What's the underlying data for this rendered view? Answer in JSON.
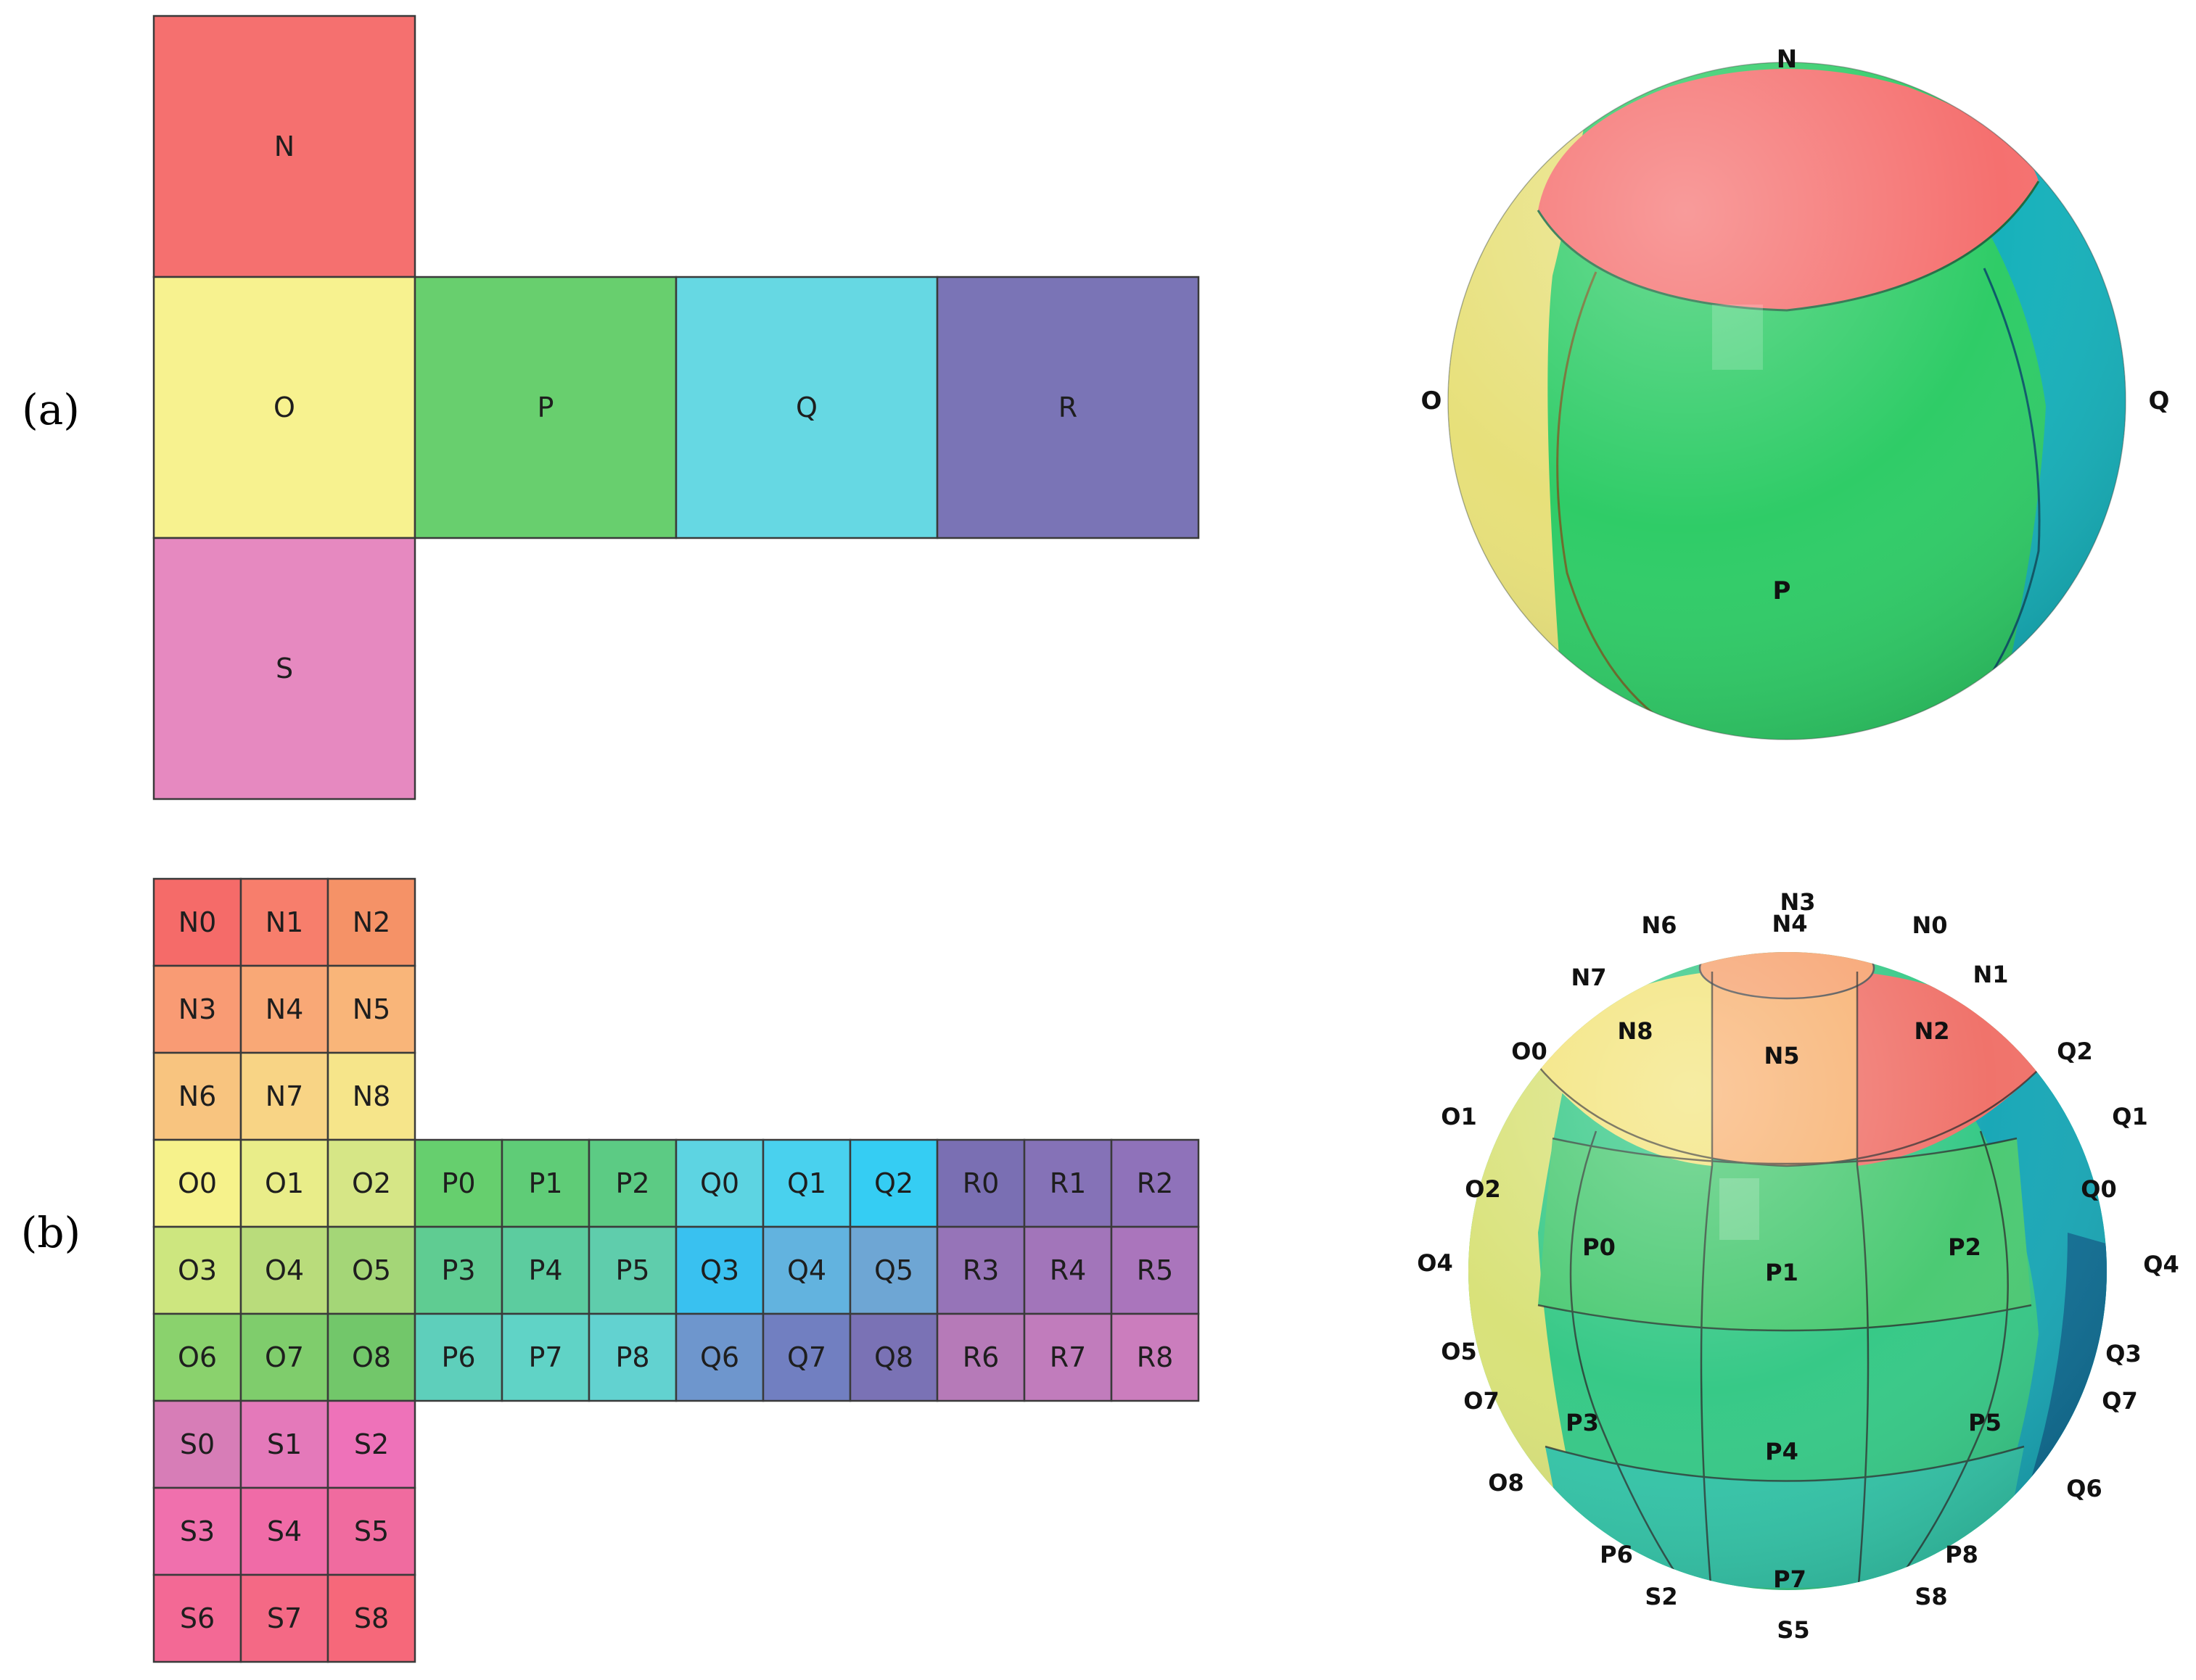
{
  "panel_labels": {
    "a": "(a)",
    "b": "(b)"
  },
  "net_a": {
    "faces": [
      {
        "id": "N",
        "label": "N",
        "color": "#f5706f"
      },
      {
        "id": "O",
        "label": "O",
        "color": "#f7f28f"
      },
      {
        "id": "P",
        "label": "P",
        "color": "#68cf6e"
      },
      {
        "id": "Q",
        "label": "Q",
        "color": "#66d8e3"
      },
      {
        "id": "R",
        "label": "R",
        "color": "#7a74b6"
      },
      {
        "id": "S",
        "label": "S",
        "color": "#e689c0"
      }
    ]
  },
  "net_b": {
    "cells": {
      "N": {
        "labels": [
          "N0",
          "N1",
          "N2",
          "N3",
          "N4",
          "N5",
          "N6",
          "N7",
          "N8"
        ],
        "colors": [
          "#f56b69",
          "#f77e6c",
          "#f59267",
          "#f99b74",
          "#f9a876",
          "#f9b579",
          "#f8c47f",
          "#f8d485",
          "#f6e58a"
        ]
      },
      "O": {
        "labels": [
          "O0",
          "O1",
          "O2",
          "O3",
          "O4",
          "O5",
          "O6",
          "O7",
          "O8"
        ],
        "colors": [
          "#f6f28b",
          "#e9ed89",
          "#d6e686",
          "#cde67f",
          "#b9dc7b",
          "#a4d677",
          "#8ad26d",
          "#7fcd6c",
          "#72c76a"
        ]
      },
      "P": {
        "labels": [
          "P0",
          "P1",
          "P2",
          "P3",
          "P4",
          "P5",
          "P6",
          "P7",
          "P8"
        ],
        "colors": [
          "#66cf6e",
          "#5fcc77",
          "#5ccb84",
          "#5fcc92",
          "#5ccc9f",
          "#5fcdac",
          "#5ecfbb",
          "#60d3c6",
          "#62d2d0"
        ]
      },
      "Q": {
        "labels": [
          "Q0",
          "Q1",
          "Q2",
          "Q3",
          "Q4",
          "Q5",
          "Q6",
          "Q7",
          "Q8"
        ],
        "colors": [
          "#5dd4e2",
          "#49d1ee",
          "#35cdf3",
          "#39c1f0",
          "#62b3df",
          "#6ea6d4",
          "#6e96cd",
          "#717fc1",
          "#7a72b5"
        ]
      },
      "R": {
        "labels": [
          "R0",
          "R1",
          "R2",
          "R3",
          "R4",
          "R5",
          "R6",
          "R7",
          "R8"
        ],
        "colors": [
          "#7a6fb3",
          "#8572b7",
          "#8f72ba",
          "#9674b8",
          "#a275ba",
          "#aa75bc",
          "#b67ab8",
          "#c17cbc",
          "#cb7dbd"
        ]
      },
      "S": {
        "labels": [
          "S0",
          "S1",
          "S2",
          "S3",
          "S4",
          "S5",
          "S6",
          "S7",
          "S8"
        ],
        "colors": [
          "#d77db7",
          "#e479ba",
          "#ee72b9",
          "#f070ad",
          "#f06ba7",
          "#f06b9f",
          "#f36995",
          "#f46985",
          "#f6687a"
        ]
      }
    }
  },
  "sphere_a": {
    "labels": {
      "N": "N",
      "O": "O",
      "Q": "Q",
      "P": "P"
    },
    "colors": {
      "N": "#f5706f",
      "O": "#e7e07a",
      "P": "#2fcc67",
      "Q": "#17b1bb",
      "S": "#d44ba4"
    }
  },
  "sphere_b": {
    "labels": [
      "N3",
      "N6",
      "N4",
      "N0",
      "N7",
      "N1",
      "O0",
      "N8",
      "N2",
      "Q2",
      "N5",
      "O1",
      "Q1",
      "O2",
      "Q0",
      "P0",
      "P2",
      "O4",
      "P1",
      "Q4",
      "O5",
      "Q3",
      "O7",
      "Q7",
      "P3",
      "P5",
      "P4",
      "O8",
      "Q6",
      "P6",
      "P8",
      "P7",
      "S2",
      "S8",
      "S5"
    ],
    "colors": {
      "cap_left": "#f3e47c",
      "cap_mid": "#f8b374",
      "cap_right": "#f0736b",
      "top_disc": "#f7a573",
      "o_band": "#d9e27a",
      "p_top": "#4cca74",
      "p_mid": "#37c987",
      "p_bot": "#34c6a9",
      "q_band": "#1aa8b7",
      "q_dark": "#106f95"
    }
  }
}
